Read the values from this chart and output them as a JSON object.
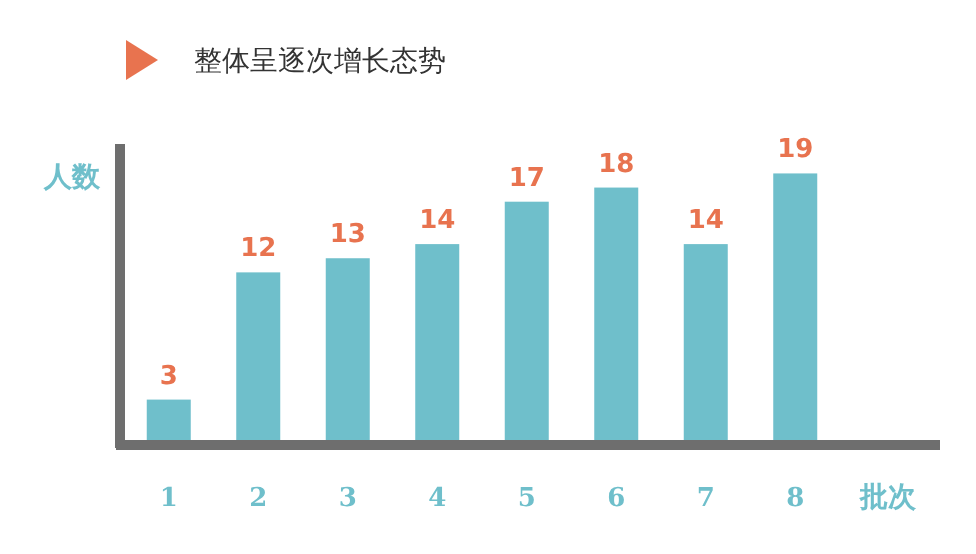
{
  "chart_data": {
    "type": "bar",
    "title": "整体呈逐次增长态势",
    "xlabel": "批次",
    "ylabel": "人数",
    "categories": [
      "1",
      "2",
      "3",
      "4",
      "5",
      "6",
      "7",
      "8"
    ],
    "values": [
      3,
      12,
      13,
      14,
      17,
      18,
      14,
      19
    ],
    "color": "#6fbfcb",
    "data_labels": true
  }
}
